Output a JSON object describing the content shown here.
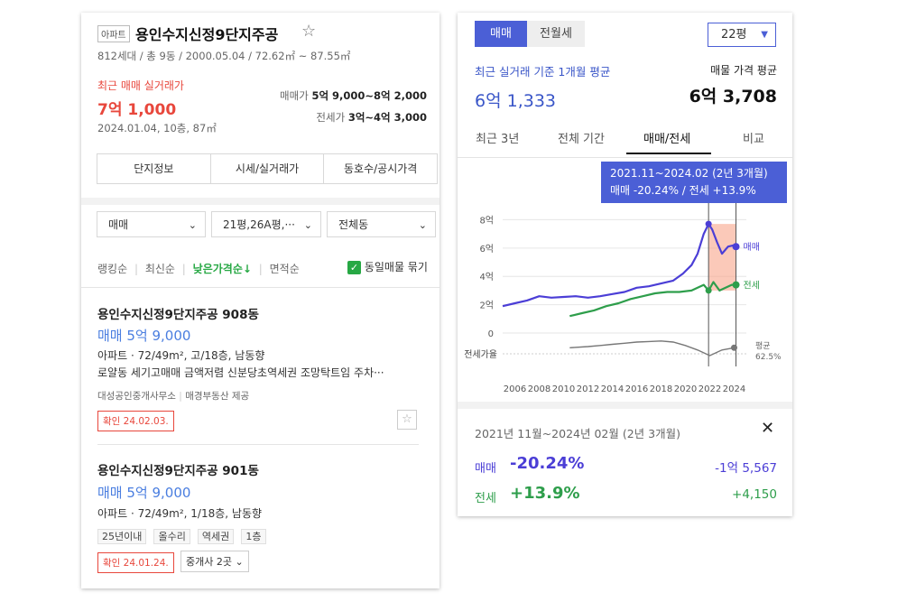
{
  "complex": {
    "type_tag": "아파트",
    "name": "용인수지신정9단지주공",
    "star": "☆",
    "info": "812세대 / 총 9동 / 2000.05.04 / 72.62㎡ ~ 87.55㎡",
    "recent_label": "최근 매매 실거래가",
    "recent_price": "7억 1,000",
    "recent_detail": "2024.01.04, 10층, 87㎡",
    "sale_label": "매매가",
    "sale_range": "5억 9,000~8억 2,000",
    "jeonse_label": "전세가",
    "jeonse_range": "3억~4억 3,000"
  },
  "tabs": [
    "단지정보",
    "시세/실거래가",
    "동호수/공시가격"
  ],
  "filters": {
    "trade": "매매",
    "size": "21평,26A평,···",
    "dong": "전체동"
  },
  "sort": {
    "items": [
      "랭킹순",
      "최신순",
      "낮은가격순↓",
      "면적순"
    ],
    "group_label": "동일매물 묶기"
  },
  "listings": [
    {
      "title": "용인수지신정9단지주공 908동",
      "price": "매매 5억 9,000",
      "type": "아파트",
      "spec": "72/49m², 고/18층, 남동향",
      "desc": "로얄동 세기고매매 금액저렴 신분당초역세권 조망탁트임 주차···",
      "agent": "대성공인중개사무소",
      "provider": "매경부동산 제공",
      "confirm": "확인 24.02.03."
    },
    {
      "title": "용인수지신정9단지주공 901동",
      "price": "매매 5억 9,000",
      "type": "아파트",
      "spec": "72/49m², 1/18층, 남동향",
      "chips": [
        "25년이내",
        "올수리",
        "역세권",
        "1층"
      ],
      "confirm": "확인 24.01.24.",
      "broker": "중개사 2곳"
    }
  ],
  "right": {
    "seg": [
      "매매",
      "전월세"
    ],
    "size_select": "22평",
    "avg_label": "최근 실거래 기준 1개월 평균",
    "avg_value": "6억 1,333",
    "listing_avg_label": "매물 가격 평균",
    "listing_avg_value": "6억 3,708",
    "period_tabs": [
      "최근 3년",
      "전체 기간",
      "매매/전세",
      "비교"
    ],
    "tooltip_line1": "2021.11~2024.02 (2년 3개월)",
    "tooltip_line2": "매매 -20.24% / 전세 +13.9%",
    "summary_period": "2021년 11월~2024년 02월 (2년 3개월)",
    "sale_label": "매매",
    "sale_pct": "-20.24%",
    "sale_diff": "-1억 5,567",
    "jeonse_label": "전세",
    "jeonse_pct": "+13.9%",
    "jeonse_diff": "+4,150",
    "close": "✕"
  },
  "chart_data": {
    "type": "line",
    "y_ticks": [
      "8억",
      "6억",
      "4억",
      "2억",
      "0"
    ],
    "ylim": [
      0,
      8.6
    ],
    "x_ticks": [
      "2006",
      "2008",
      "2010",
      "2012",
      "2014",
      "2016",
      "2018",
      "2020",
      "2022",
      "2024"
    ],
    "xlim": [
      2005,
      2025
    ],
    "ratio_label": "전세가율",
    "ratio_avg_label": "평균",
    "ratio_avg_value": "62.5%",
    "series": [
      {
        "name": "매매",
        "color": "#4b3ed6",
        "x": [
          2005.0,
          2006,
          2007,
          2008,
          2009,
          2010,
          2011,
          2012,
          2013,
          2014,
          2015,
          2016,
          2017,
          2018,
          2019,
          2019.8,
          2020.5,
          2021.0,
          2021.5,
          2021.9,
          2022.2,
          2022.6,
          2023.0,
          2023.5,
          2024.0,
          2024.15
        ],
        "values": [
          1.9,
          2.1,
          2.3,
          2.6,
          2.5,
          2.55,
          2.6,
          2.5,
          2.6,
          2.75,
          2.9,
          3.2,
          3.3,
          3.5,
          3.7,
          4.2,
          4.8,
          5.6,
          7.0,
          7.7,
          7.3,
          6.4,
          5.6,
          6.1,
          6.2,
          6.1
        ]
      },
      {
        "name": "전세",
        "color": "#2e9e4b",
        "x": [
          2010.5,
          2011.5,
          2012.5,
          2013.5,
          2014.5,
          2015.5,
          2016.5,
          2017.5,
          2018.5,
          2019.5,
          2020.5,
          2021.0,
          2021.5,
          2021.9,
          2022.3,
          2022.8,
          2023.3,
          2023.8,
          2024.15
        ],
        "values": [
          1.2,
          1.4,
          1.6,
          1.9,
          2.1,
          2.4,
          2.6,
          2.8,
          2.9,
          2.9,
          3.0,
          3.2,
          3.4,
          3.0,
          3.6,
          3.0,
          3.2,
          3.4,
          3.4
        ]
      }
    ],
    "ratio_series": {
      "color": "#777777",
      "x": [
        2010.5,
        2012,
        2013,
        2014,
        2015,
        2016,
        2017,
        2018,
        2019,
        2020,
        2021,
        2022,
        2023,
        2024
      ],
      "values": [
        62,
        64,
        66,
        68,
        70,
        72,
        73,
        74,
        72,
        66,
        58,
        48,
        58,
        62
      ]
    },
    "highlight": {
      "from": 2021.9,
      "to": 2024.15
    }
  }
}
